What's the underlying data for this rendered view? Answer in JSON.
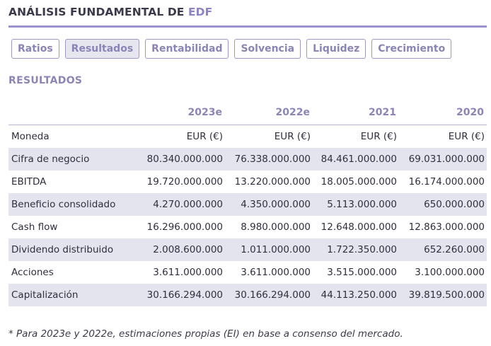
{
  "header": {
    "title_prefix": "ANÁLISIS FUNDAMENTAL DE",
    "brand": "EDF"
  },
  "tabs": [
    {
      "label": "Ratios",
      "active": false
    },
    {
      "label": "Resultados",
      "active": true
    },
    {
      "label": "Rentabilidad",
      "active": false
    },
    {
      "label": "Solvencia",
      "active": false
    },
    {
      "label": "Liquidez",
      "active": false
    },
    {
      "label": "Crecimiento",
      "active": false
    }
  ],
  "section_title": "RESULTADOS",
  "table": {
    "columns": [
      "",
      "2023e",
      "2022e",
      "2021",
      "2020"
    ],
    "rows": [
      {
        "label": "Moneda",
        "values": [
          "EUR (€)",
          "EUR (€)",
          "EUR (€)",
          "EUR (€)"
        ]
      },
      {
        "label": "Cifra de negocio",
        "values": [
          "80.340.000.000",
          "76.338.000.000",
          "84.461.000.000",
          "69.031.000.000"
        ]
      },
      {
        "label": "EBITDA",
        "values": [
          "19.720.000.000",
          "13.220.000.000",
          "18.005.000.000",
          "16.174.000.000"
        ]
      },
      {
        "label": "Beneficio consolidado",
        "values": [
          "4.270.000.000",
          "4.350.000.000",
          "5.113.000.000",
          "650.000.000"
        ]
      },
      {
        "label": "Cash flow",
        "values": [
          "16.296.000.000",
          "8.980.000.000",
          "12.648.000.000",
          "12.863.000.000"
        ]
      },
      {
        "label": "Dividendo distribuido",
        "values": [
          "2.008.600.000",
          "1.011.000.000",
          "1.722.350.000",
          "652.260.000"
        ]
      },
      {
        "label": "Acciones",
        "values": [
          "3.611.000.000",
          "3.611.000.000",
          "3.515.000.000",
          "3.100.000.000"
        ]
      },
      {
        "label": "Capitalización",
        "values": [
          "30.166.294.000",
          "30.166.294.000",
          "44.113.250.000",
          "39.819.500.000"
        ]
      }
    ]
  },
  "footnote": "* Para 2023e y 2022e, estimaciones propias (EI) en base a consenso del mercado.",
  "colors": {
    "accent": "#9b93cf",
    "text_muted": "#8b85b8",
    "row_shade": "#e4e4ee"
  }
}
